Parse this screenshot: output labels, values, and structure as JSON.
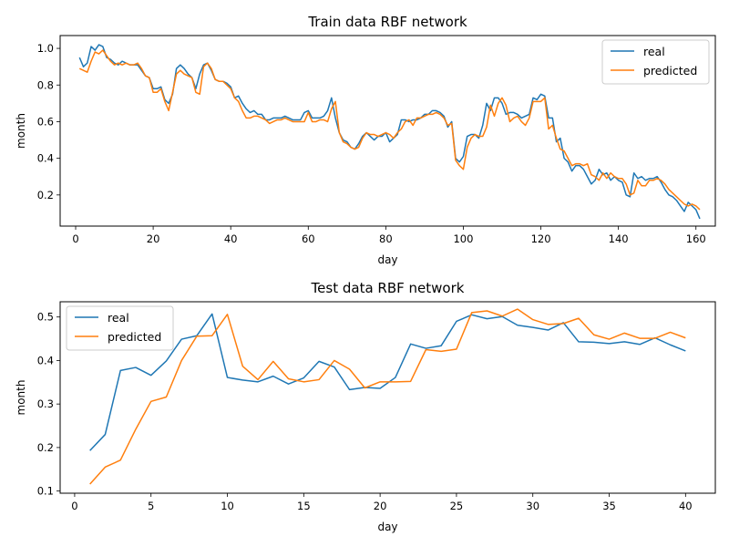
{
  "colors": {
    "real": "#1f77b4",
    "predicted": "#ff7f0e"
  },
  "chart_data": [
    {
      "type": "line",
      "title": "Train data RBF network",
      "xlabel": "day",
      "ylabel": "month",
      "xlim": [
        -4,
        165
      ],
      "ylim": [
        0.03,
        1.07
      ],
      "xticks": [
        0,
        20,
        40,
        60,
        80,
        100,
        120,
        140,
        160
      ],
      "yticks": [
        0.2,
        0.4,
        0.6,
        0.8,
        1.0
      ],
      "ytick_labels": [
        "0.2",
        "0.4",
        "0.6",
        "0.8",
        "1.0"
      ],
      "legend": {
        "position": "upper right",
        "entries": [
          "real",
          "predicted"
        ]
      },
      "x_start": 1,
      "series": [
        {
          "name": "real",
          "values": [
            0.95,
            0.9,
            0.92,
            1.01,
            0.99,
            1.02,
            1.01,
            0.95,
            0.94,
            0.92,
            0.91,
            0.93,
            0.92,
            0.91,
            0.91,
            0.91,
            0.88,
            0.85,
            0.84,
            0.78,
            0.78,
            0.79,
            0.72,
            0.7,
            0.75,
            0.89,
            0.91,
            0.89,
            0.86,
            0.84,
            0.78,
            0.86,
            0.91,
            0.92,
            0.88,
            0.83,
            0.82,
            0.82,
            0.81,
            0.79,
            0.73,
            0.74,
            0.7,
            0.67,
            0.65,
            0.66,
            0.64,
            0.64,
            0.61,
            0.61,
            0.62,
            0.62,
            0.62,
            0.63,
            0.62,
            0.61,
            0.61,
            0.61,
            0.65,
            0.66,
            0.62,
            0.62,
            0.62,
            0.63,
            0.66,
            0.73,
            0.62,
            0.54,
            0.5,
            0.49,
            0.46,
            0.45,
            0.48,
            0.52,
            0.54,
            0.52,
            0.5,
            0.52,
            0.52,
            0.54,
            0.49,
            0.51,
            0.53,
            0.61,
            0.61,
            0.6,
            0.61,
            0.61,
            0.62,
            0.64,
            0.64,
            0.66,
            0.66,
            0.65,
            0.63,
            0.57,
            0.6,
            0.4,
            0.38,
            0.41,
            0.52,
            0.53,
            0.53,
            0.51,
            0.58,
            0.7,
            0.66,
            0.73,
            0.73,
            0.7,
            0.64,
            0.65,
            0.65,
            0.64,
            0.62,
            0.63,
            0.64,
            0.73,
            0.72,
            0.75,
            0.74,
            0.62,
            0.62,
            0.49,
            0.51,
            0.4,
            0.38,
            0.33,
            0.36,
            0.36,
            0.34,
            0.3,
            0.26,
            0.28,
            0.34,
            0.31,
            0.32,
            0.28,
            0.3,
            0.28,
            0.27,
            0.2,
            0.19,
            0.32,
            0.29,
            0.3,
            0.28,
            0.29,
            0.29,
            0.3,
            0.27,
            0.23,
            0.2,
            0.19,
            0.17,
            0.14,
            0.11,
            0.16,
            0.14,
            0.12,
            0.07
          ]
        },
        {
          "name": "predicted",
          "values": [
            0.89,
            0.88,
            0.87,
            0.93,
            0.98,
            0.97,
            0.99,
            0.96,
            0.93,
            0.91,
            0.92,
            0.91,
            0.92,
            0.91,
            0.91,
            0.92,
            0.89,
            0.85,
            0.84,
            0.76,
            0.76,
            0.78,
            0.71,
            0.66,
            0.76,
            0.86,
            0.88,
            0.86,
            0.85,
            0.84,
            0.76,
            0.75,
            0.9,
            0.92,
            0.89,
            0.83,
            0.82,
            0.82,
            0.8,
            0.78,
            0.73,
            0.71,
            0.66,
            0.62,
            0.62,
            0.63,
            0.63,
            0.62,
            0.61,
            0.59,
            0.6,
            0.61,
            0.61,
            0.62,
            0.61,
            0.6,
            0.6,
            0.6,
            0.6,
            0.65,
            0.6,
            0.6,
            0.61,
            0.61,
            0.6,
            0.67,
            0.71,
            0.54,
            0.49,
            0.48,
            0.46,
            0.45,
            0.46,
            0.51,
            0.54,
            0.53,
            0.53,
            0.52,
            0.53,
            0.54,
            0.53,
            0.51,
            0.54,
            0.56,
            0.6,
            0.61,
            0.58,
            0.62,
            0.62,
            0.63,
            0.64,
            0.64,
            0.65,
            0.64,
            0.62,
            0.58,
            0.59,
            0.39,
            0.36,
            0.34,
            0.46,
            0.51,
            0.53,
            0.52,
            0.52,
            0.57,
            0.69,
            0.63,
            0.7,
            0.73,
            0.69,
            0.6,
            0.62,
            0.63,
            0.6,
            0.58,
            0.62,
            0.71,
            0.71,
            0.71,
            0.73,
            0.56,
            0.58,
            0.51,
            0.45,
            0.44,
            0.4,
            0.36,
            0.37,
            0.37,
            0.36,
            0.37,
            0.31,
            0.3,
            0.28,
            0.32,
            0.29,
            0.32,
            0.3,
            0.29,
            0.29,
            0.26,
            0.2,
            0.21,
            0.28,
            0.25,
            0.25,
            0.28,
            0.28,
            0.29,
            0.28,
            0.26,
            0.23,
            0.21,
            0.19,
            0.17,
            0.15,
            0.14,
            0.15,
            0.14,
            0.12
          ]
        }
      ]
    },
    {
      "type": "line",
      "title": "Test data RBF network",
      "xlabel": "day",
      "ylabel": "month",
      "xlim": [
        -0.95,
        41.95
      ],
      "ylim": [
        0.095,
        0.535
      ],
      "xticks": [
        0,
        5,
        10,
        15,
        20,
        25,
        30,
        35,
        40
      ],
      "yticks": [
        0.1,
        0.2,
        0.3,
        0.4,
        0.5
      ],
      "ytick_labels": [
        "0.1",
        "0.2",
        "0.3",
        "0.4",
        "0.5"
      ],
      "legend": {
        "position": "upper left",
        "entries": [
          "real",
          "predicted"
        ]
      },
      "x_start": 1,
      "series": [
        {
          "name": "real",
          "values": [
            0.193,
            0.23,
            0.377,
            0.384,
            0.366,
            0.399,
            0.449,
            0.457,
            0.507,
            0.361,
            0.355,
            0.351,
            0.364,
            0.346,
            0.36,
            0.398,
            0.385,
            0.333,
            0.338,
            0.336,
            0.361,
            0.438,
            0.428,
            0.434,
            0.49,
            0.505,
            0.496,
            0.501,
            0.481,
            0.476,
            0.47,
            0.487,
            0.443,
            0.442,
            0.439,
            0.443,
            0.437,
            0.452,
            0.436,
            0.422
          ]
        },
        {
          "name": "predicted",
          "values": [
            0.116,
            0.155,
            0.171,
            0.242,
            0.306,
            0.316,
            0.4,
            0.456,
            0.457,
            0.506,
            0.387,
            0.356,
            0.398,
            0.358,
            0.351,
            0.356,
            0.4,
            0.38,
            0.337,
            0.351,
            0.351,
            0.352,
            0.425,
            0.421,
            0.426,
            0.51,
            0.514,
            0.502,
            0.518,
            0.494,
            0.483,
            0.485,
            0.497,
            0.459,
            0.449,
            0.463,
            0.451,
            0.451,
            0.465,
            0.452
          ]
        }
      ]
    }
  ]
}
